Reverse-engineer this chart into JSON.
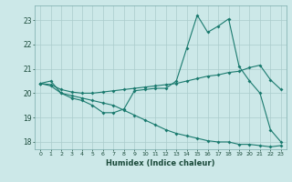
{
  "title": "",
  "xlabel": "Humidex (Indice chaleur)",
  "ylabel": "",
  "bg_color": "#cce8e8",
  "grid_color": "#aacccc",
  "line_color": "#1a7a6e",
  "xlim": [
    -0.5,
    23.5
  ],
  "ylim": [
    17.7,
    23.6
  ],
  "yticks": [
    18,
    19,
    20,
    21,
    22,
    23
  ],
  "xticks": [
    0,
    1,
    2,
    3,
    4,
    5,
    6,
    7,
    8,
    9,
    10,
    11,
    12,
    13,
    14,
    15,
    16,
    17,
    18,
    19,
    20,
    21,
    22,
    23
  ],
  "line1_x": [
    0,
    1,
    2,
    3,
    4,
    5,
    6,
    7,
    8,
    9,
    10,
    11,
    12,
    13,
    14,
    15,
    16,
    17,
    18,
    19,
    20,
    21,
    22,
    23
  ],
  "line1_y": [
    20.4,
    20.5,
    20.0,
    19.8,
    19.7,
    19.5,
    19.2,
    19.2,
    19.35,
    20.1,
    20.15,
    20.2,
    20.2,
    20.5,
    21.85,
    23.2,
    22.5,
    22.75,
    23.05,
    21.1,
    20.5,
    20.0,
    18.5,
    18.0
  ],
  "line2_x": [
    0,
    1,
    2,
    3,
    4,
    5,
    6,
    7,
    8,
    9,
    10,
    11,
    12,
    13,
    14,
    15,
    16,
    17,
    18,
    19,
    20,
    21,
    22,
    23
  ],
  "line2_y": [
    20.4,
    20.35,
    20.15,
    20.05,
    20.0,
    20.0,
    20.05,
    20.1,
    20.15,
    20.2,
    20.25,
    20.3,
    20.35,
    20.4,
    20.5,
    20.6,
    20.7,
    20.75,
    20.85,
    20.9,
    21.05,
    21.15,
    20.55,
    20.15
  ],
  "line3_x": [
    0,
    1,
    2,
    3,
    4,
    5,
    6,
    7,
    8,
    9,
    10,
    11,
    12,
    13,
    14,
    15,
    16,
    17,
    18,
    19,
    20,
    21,
    22,
    23
  ],
  "line3_y": [
    20.4,
    20.3,
    20.0,
    19.9,
    19.8,
    19.7,
    19.6,
    19.5,
    19.3,
    19.1,
    18.9,
    18.7,
    18.5,
    18.35,
    18.25,
    18.15,
    18.05,
    18.0,
    18.0,
    17.9,
    17.9,
    17.85,
    17.8,
    17.85
  ]
}
